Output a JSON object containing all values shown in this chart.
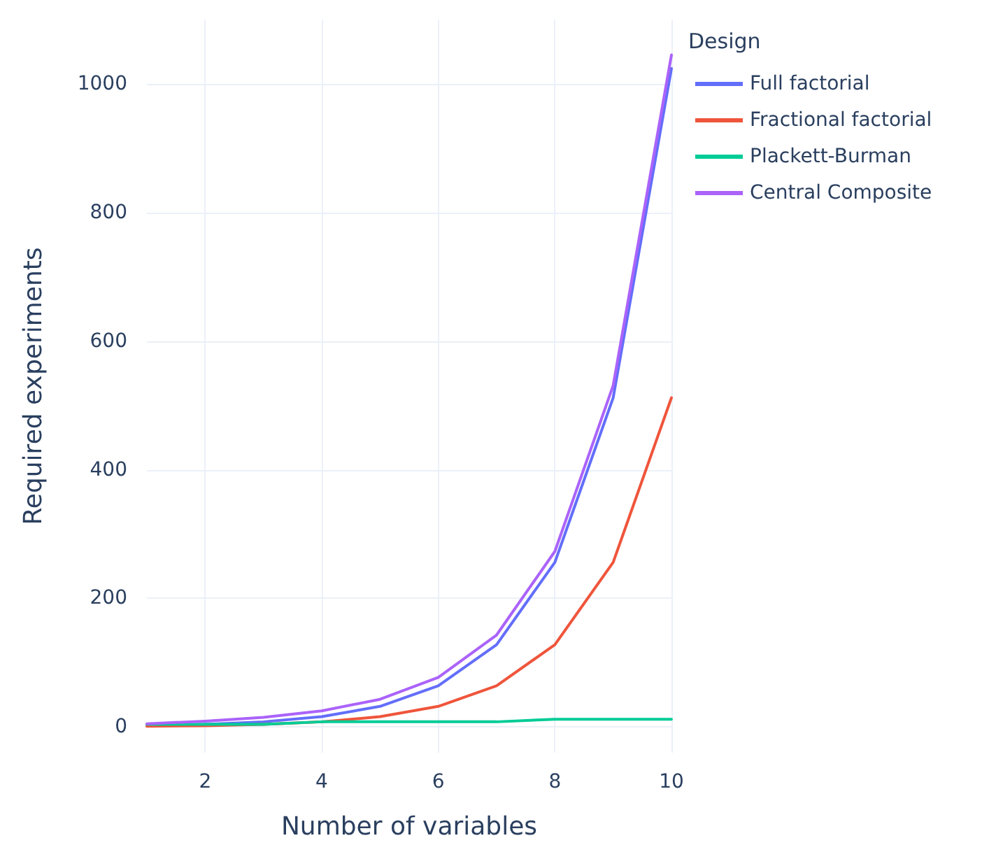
{
  "chart_data": {
    "type": "line",
    "xlabel": "Number of variables",
    "ylabel": "Required experiments",
    "legend_title": "Design",
    "x": [
      1,
      2,
      3,
      4,
      5,
      6,
      7,
      8,
      9,
      10
    ],
    "series": [
      {
        "name": "Full factorial",
        "color": "#636efa",
        "values": [
          2,
          4,
          8,
          16,
          32,
          64,
          128,
          256,
          512,
          1024
        ]
      },
      {
        "name": "Fractional factorial",
        "color": "#ef553b",
        "values": [
          1,
          2,
          4,
          8,
          16,
          32,
          64,
          128,
          256,
          512
        ]
      },
      {
        "name": "Plackett-Burman",
        "color": "#00cc96",
        "values": [
          4,
          4,
          4,
          8,
          8,
          8,
          8,
          12,
          12,
          12
        ]
      },
      {
        "name": "Central Composite",
        "color": "#ab63fa",
        "values": [
          5,
          9,
          15,
          25,
          43,
          77,
          143,
          273,
          531,
          1045
        ]
      }
    ],
    "xlim": [
      1,
      10
    ],
    "xticks": [
      2,
      4,
      6,
      8,
      10
    ],
    "ylim": [
      -40,
      1100
    ],
    "yticks": [
      0,
      200,
      400,
      600,
      800,
      1000
    ],
    "grid": true,
    "legend": "top right",
    "marker": "none",
    "line_style": "solid"
  }
}
